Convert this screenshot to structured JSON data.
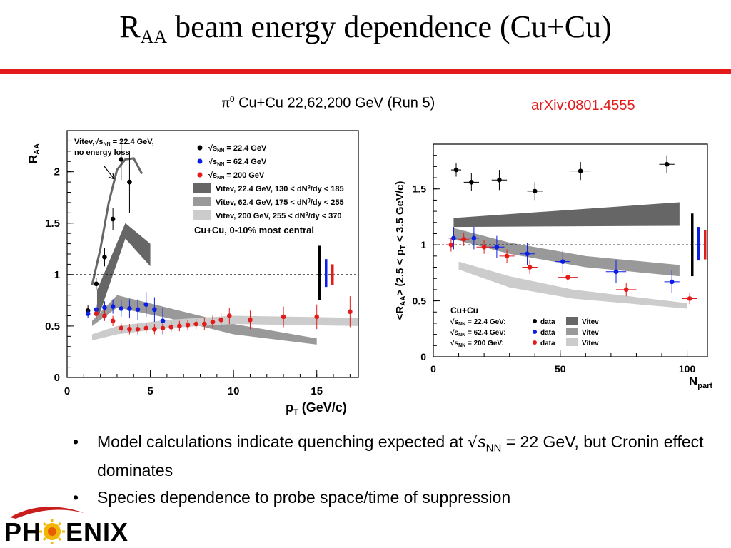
{
  "slide": {
    "title_main": "R",
    "title_sub": "AA",
    "title_rest": " beam energy dependence (Cu+Cu)",
    "caption_symbol": "π",
    "caption_sup": "0",
    "caption_text": " Cu+Cu 22,62,200 GeV (Run 5)",
    "reference": "arXiv:0801.4555",
    "bullet1_pre": "Model calculations indicate quenching expected at ",
    "bullet1_sqrt": "√",
    "bullet1_s": "s",
    "bullet1_sub": "NN",
    "bullet1_post": " = 22 GeV, but Cronin effect dominates",
    "bullet2": "Species dependence to probe space/time of suppression",
    "logo_left": "PH",
    "logo_right": "ENIX"
  },
  "colors": {
    "accent_red": "#e31b1b",
    "s22": "#000000",
    "s62": "#0a1ee6",
    "s200": "#e31b1b",
    "band22": "#666666",
    "band62": "#999999",
    "band200": "#cccccc"
  },
  "chart_data": [
    {
      "type": "scatter",
      "xlabel_main": "p",
      "xlabel_sub": "T",
      "xlabel_rest": " (GeV/c)",
      "ylabel_main": "R",
      "ylabel_sub": "AA",
      "xlim": [
        0,
        17.5
      ],
      "ylim": [
        0,
        2.4
      ],
      "xticks": [
        0,
        5,
        10,
        15
      ],
      "yticks": [
        0,
        0.5,
        1,
        1.5,
        2
      ],
      "reference_line": 1,
      "annotation_line1": "Vitev,√s",
      "annotation_line1_sub": "NN",
      "annotation_line1_post": " = 22.4 GeV,",
      "annotation_line2": "no energy loss",
      "legend": {
        "s22": "= 22.4 GeV",
        "s62": "= 62.4 GeV",
        "s200": "= 200 GeV",
        "sqrt_label": "s",
        "sqrt_sub": "NN",
        "band22": "Vitev, 22.4 GeV, 130 < dN",
        "band62": "Vitev, 62.4 GeV, 175 < dN",
        "band200": "Vitev, 200 GeV, 255 < dN",
        "band_sup": "g",
        "band_tail22": "/dy < 185",
        "band_tail62": "/dy < 255",
        "band_tail200": "/dy < 370",
        "centrality": "Cu+Cu, 0-10% most central"
      },
      "series": [
        {
          "name": "22.4 GeV",
          "color_key": "s22",
          "points": [
            {
              "x": 1.25,
              "y": 0.65,
              "err": 0.05
            },
            {
              "x": 1.75,
              "y": 0.91,
              "err": 0.06
            },
            {
              "x": 2.25,
              "y": 1.17,
              "err": 0.09
            },
            {
              "x": 2.75,
              "y": 1.54,
              "err": 0.11
            },
            {
              "x": 3.25,
              "y": 2.12,
              "err": 0.2
            },
            {
              "x": 3.75,
              "y": 1.9,
              "err": 0.3
            }
          ]
        },
        {
          "name": "62.4 GeV",
          "color_key": "s62",
          "points": [
            {
              "x": 1.25,
              "y": 0.62,
              "err": 0.04
            },
            {
              "x": 1.75,
              "y": 0.66,
              "err": 0.05
            },
            {
              "x": 2.25,
              "y": 0.68,
              "err": 0.06
            },
            {
              "x": 2.75,
              "y": 0.69,
              "err": 0.07
            },
            {
              "x": 3.25,
              "y": 0.67,
              "err": 0.08
            },
            {
              "x": 3.75,
              "y": 0.67,
              "err": 0.09
            },
            {
              "x": 4.25,
              "y": 0.66,
              "err": 0.1
            },
            {
              "x": 4.75,
              "y": 0.71,
              "err": 0.12
            },
            {
              "x": 5.25,
              "y": 0.66,
              "err": 0.12
            },
            {
              "x": 5.75,
              "y": 0.55,
              "err": 0.13
            }
          ]
        },
        {
          "name": "200 GeV",
          "color_key": "s200",
          "points": [
            {
              "x": 1.75,
              "y": 0.62,
              "err": 0.05
            },
            {
              "x": 2.25,
              "y": 0.6,
              "err": 0.05
            },
            {
              "x": 2.75,
              "y": 0.55,
              "err": 0.05
            },
            {
              "x": 3.25,
              "y": 0.48,
              "err": 0.05
            },
            {
              "x": 3.75,
              "y": 0.47,
              "err": 0.05
            },
            {
              "x": 4.25,
              "y": 0.47,
              "err": 0.05
            },
            {
              "x": 4.75,
              "y": 0.48,
              "err": 0.05
            },
            {
              "x": 5.25,
              "y": 0.47,
              "err": 0.05
            },
            {
              "x": 5.75,
              "y": 0.48,
              "err": 0.05
            },
            {
              "x": 6.25,
              "y": 0.49,
              "err": 0.05
            },
            {
              "x": 6.75,
              "y": 0.5,
              "err": 0.05
            },
            {
              "x": 7.25,
              "y": 0.51,
              "err": 0.05
            },
            {
              "x": 7.75,
              "y": 0.52,
              "err": 0.05
            },
            {
              "x": 8.25,
              "y": 0.52,
              "err": 0.06
            },
            {
              "x": 8.75,
              "y": 0.54,
              "err": 0.06
            },
            {
              "x": 9.25,
              "y": 0.56,
              "err": 0.07
            },
            {
              "x": 9.75,
              "y": 0.6,
              "err": 0.08
            },
            {
              "x": 11,
              "y": 0.56,
              "err": 0.09
            },
            {
              "x": 13,
              "y": 0.59,
              "err": 0.1
            },
            {
              "x": 15,
              "y": 0.59,
              "err": 0.12
            },
            {
              "x": 17,
              "y": 0.64,
              "err": 0.15
            }
          ]
        }
      ],
      "bands": [
        {
          "color_key": "band22",
          "x": [
            1.8,
            3.5,
            5
          ],
          "lo": [
            0.55,
            1.35,
            1.08
          ],
          "hi": [
            0.85,
            1.5,
            1.3
          ]
        },
        {
          "color_key": "band62",
          "x": [
            1.5,
            3,
            6,
            10,
            15
          ],
          "lo": [
            0.5,
            0.68,
            0.58,
            0.42,
            0.32
          ],
          "hi": [
            0.55,
            0.8,
            0.68,
            0.52,
            0.38
          ]
        },
        {
          "color_key": "band200",
          "x": [
            1.5,
            3,
            6,
            10,
            17.5
          ],
          "lo": [
            0.36,
            0.42,
            0.48,
            0.52,
            0.5
          ],
          "hi": [
            0.42,
            0.5,
            0.56,
            0.6,
            0.58
          ]
        }
      ],
      "curve_no_eloss": {
        "x": [
          1.5,
          2,
          2.5,
          3,
          3.5,
          4,
          4.5
        ],
        "y": [
          0.9,
          1.25,
          1.7,
          2.02,
          2.12,
          2.13,
          1.98
        ]
      },
      "syst_bars": [
        {
          "color_key": "s22",
          "lo": 0.75,
          "hi": 1.28
        },
        {
          "color_key": "s62",
          "lo": 0.88,
          "hi": 1.15
        },
        {
          "color_key": "s200",
          "lo": 0.9,
          "hi": 1.1
        }
      ]
    },
    {
      "type": "scatter",
      "xlabel_main": "N",
      "xlabel_sub": "part",
      "ylabel_text": "<R",
      "ylabel_sub": "AA",
      "ylabel_mid": "> (2.5 < p",
      "ylabel_sub2": "T",
      "ylabel_end": " < 3.5 GeV/c)",
      "xlim": [
        0,
        108
      ],
      "ylim": [
        0,
        1.9
      ],
      "xticks": [
        0,
        50,
        100
      ],
      "yticks": [
        0,
        0.5,
        1,
        1.5
      ],
      "reference_line": 1,
      "legend": {
        "title": "Cu+Cu",
        "sqrt_label": "s",
        "sqrt_sub": "NN",
        "s22": "= 22.4 GeV:",
        "s62": "= 62.4 GeV:",
        "s200": "= 200 GeV:",
        "data": "data",
        "model": "Vitev"
      },
      "series": [
        {
          "name": "22.4 GeV",
          "color_key": "s22",
          "points": [
            {
              "x": 9,
              "y": 1.67,
              "err": 0.06,
              "xerr": 2
            },
            {
              "x": 15,
              "y": 1.56,
              "err": 0.08,
              "xerr": 3
            },
            {
              "x": 26,
              "y": 1.58,
              "err": 0.09,
              "xerr": 3
            },
            {
              "x": 40,
              "y": 1.48,
              "err": 0.08,
              "xerr": 3
            },
            {
              "x": 58,
              "y": 1.66,
              "err": 0.08,
              "xerr": 4
            },
            {
              "x": 92,
              "y": 1.72,
              "err": 0.08,
              "xerr": 3
            }
          ]
        },
        {
          "name": "62.4 GeV",
          "color_key": "s62",
          "points": [
            {
              "x": 8,
              "y": 1.06,
              "err": 0.1,
              "xerr": 2
            },
            {
              "x": 16,
              "y": 1.06,
              "err": 0.1,
              "xerr": 2
            },
            {
              "x": 25,
              "y": 0.98,
              "err": 0.1,
              "xerr": 3
            },
            {
              "x": 37,
              "y": 0.92,
              "err": 0.1,
              "xerr": 3
            },
            {
              "x": 51,
              "y": 0.85,
              "err": 0.1,
              "xerr": 3
            },
            {
              "x": 72,
              "y": 0.76,
              "err": 0.1,
              "xerr": 4
            },
            {
              "x": 94,
              "y": 0.67,
              "err": 0.1,
              "xerr": 3
            }
          ]
        },
        {
          "name": "200 GeV",
          "color_key": "s200",
          "points": [
            {
              "x": 7,
              "y": 1.0,
              "err": 0.06,
              "xerr": 2
            },
            {
              "x": 12,
              "y": 1.05,
              "err": 0.06,
              "xerr": 2
            },
            {
              "x": 20,
              "y": 0.98,
              "err": 0.06,
              "xerr": 3
            },
            {
              "x": 29,
              "y": 0.9,
              "err": 0.06,
              "xerr": 3
            },
            {
              "x": 38,
              "y": 0.8,
              "err": 0.06,
              "xerr": 3
            },
            {
              "x": 53,
              "y": 0.71,
              "err": 0.06,
              "xerr": 4
            },
            {
              "x": 76,
              "y": 0.6,
              "err": 0.06,
              "xerr": 4
            },
            {
              "x": 101,
              "y": 0.52,
              "err": 0.05,
              "xerr": 3
            }
          ]
        }
      ],
      "bands": [
        {
          "color_key": "band22",
          "x": [
            8,
            97
          ],
          "lo": [
            1.16,
            1.17
          ],
          "hi": [
            1.24,
            1.38
          ]
        },
        {
          "color_key": "band62",
          "x": [
            8,
            30,
            60,
            97
          ],
          "lo": [
            1.05,
            0.92,
            0.8,
            0.72
          ],
          "hi": [
            1.15,
            1.02,
            0.9,
            0.82
          ]
        },
        {
          "color_key": "band200",
          "x": [
            10,
            30,
            55,
            100
          ],
          "lo": [
            0.78,
            0.62,
            0.52,
            0.43
          ],
          "hi": [
            0.85,
            0.72,
            0.6,
            0.48
          ]
        }
      ],
      "syst_bars": [
        {
          "color_key": "s22",
          "lo": 0.72,
          "hi": 1.28
        },
        {
          "color_key": "s62",
          "lo": 0.86,
          "hi": 1.16
        },
        {
          "color_key": "s200",
          "lo": 0.87,
          "hi": 1.13
        }
      ]
    }
  ]
}
